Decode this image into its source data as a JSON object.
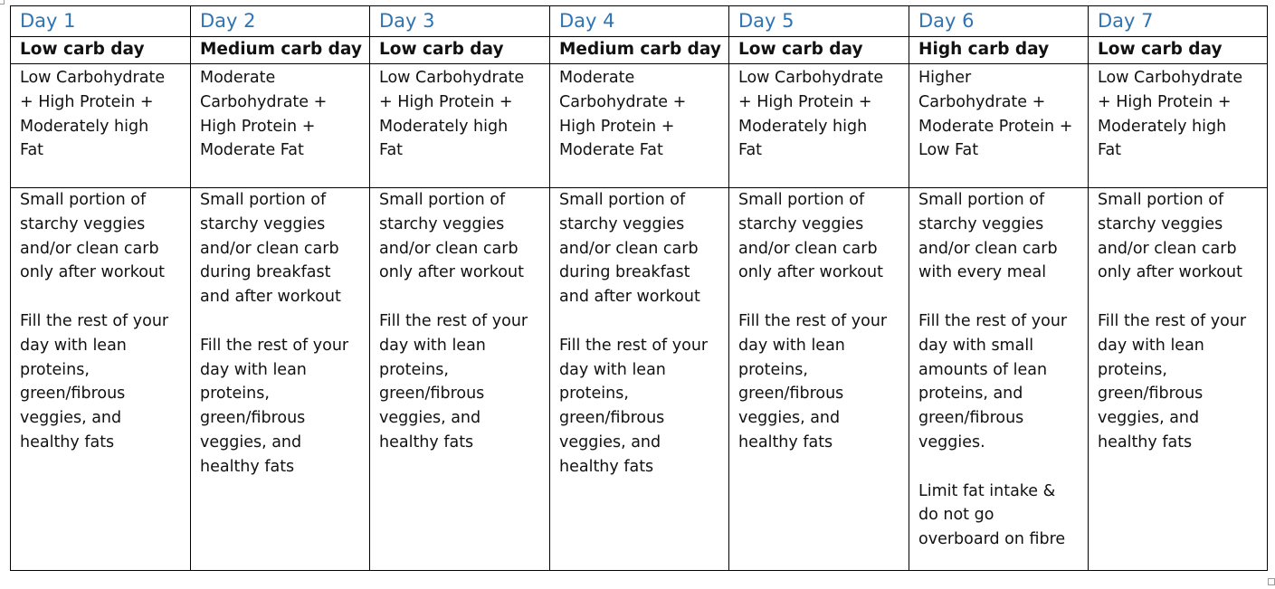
{
  "days": [
    {
      "day_label": "Day 1",
      "type": "Low carb day",
      "macros": "Low Carbohydrate\n+ High Protein +\nModerately high\nFat",
      "details": [
        "Small portion of\nstarchy veggies\nand/or clean carb\nonly after workout",
        "Fill the rest of your\nday with lean\nproteins,\ngreen/fibrous\nveggies, and\nhealthy fats"
      ]
    },
    {
      "day_label": "Day 2",
      "type": "Medium carb day",
      "macros": "Moderate\nCarbohydrate +\nHigh Protein +\nModerate Fat",
      "details": [
        "Small portion of\nstarchy veggies\nand/or clean carb\nduring breakfast\nand after workout",
        "Fill the rest of your\nday with lean\nproteins,\ngreen/fibrous\nveggies, and\nhealthy fats"
      ]
    },
    {
      "day_label": "Day 3",
      "type": "Low carb day",
      "macros": "Low Carbohydrate\n+ High Protein +\nModerately high\nFat",
      "details": [
        "Small portion of\nstarchy veggies\nand/or clean carb\nonly after workout",
        "Fill the rest of your\nday with lean\nproteins,\ngreen/fibrous\nveggies, and\nhealthy fats"
      ]
    },
    {
      "day_label": "Day 4",
      "type": "Medium carb day",
      "macros": "Moderate\nCarbohydrate +\nHigh Protein +\nModerate Fat",
      "details": [
        "Small portion of\nstarchy veggies\nand/or clean carb\nduring breakfast\nand after workout",
        "Fill the rest of your\nday with lean\nproteins,\ngreen/fibrous\nveggies, and\nhealthy fats"
      ]
    },
    {
      "day_label": "Day 5",
      "type": "Low carb day",
      "macros": "Low Carbohydrate\n+ High Protein +\nModerately high\nFat",
      "details": [
        "Small portion of\nstarchy veggies\nand/or clean carb\nonly after workout",
        "Fill the rest of your\nday with lean\nproteins,\ngreen/fibrous\nveggies, and\nhealthy fats"
      ]
    },
    {
      "day_label": "Day 6",
      "type": "High carb day",
      "macros": "Higher\nCarbohydrate +\nModerate Protein +\nLow Fat",
      "details": [
        "Small portion of\nstarchy veggies\nand/or clean carb\nwith every meal",
        "Fill the rest of your\nday with small\namounts of lean\nproteins, and\ngreen/fibrous\nveggies.",
        "Limit fat intake &\ndo not go\noverboard on fibre"
      ]
    },
    {
      "day_label": "Day 7",
      "type": "Low carb day",
      "macros": "Low Carbohydrate\n+ High Protein +\nModerately high\nFat",
      "details": [
        "Small portion of\nstarchy veggies\nand/or clean carb\nonly after workout",
        "Fill the rest of your\nday with lean\nproteins,\ngreen/fibrous\nveggies, and\nhealthy fats"
      ]
    }
  ],
  "colors": {
    "day_heading": "#2e74b5",
    "body_text": "#111111",
    "border": "#000000"
  }
}
